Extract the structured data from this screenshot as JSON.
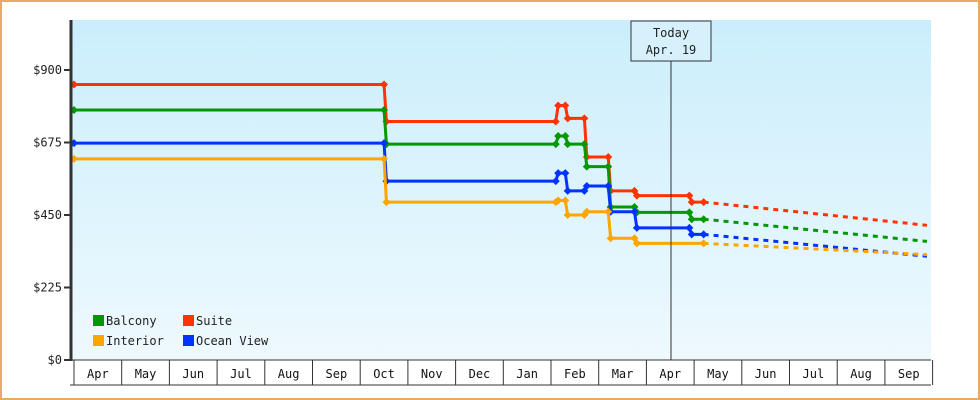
{
  "chart_data": {
    "type": "line",
    "title": "",
    "xlabel": "",
    "ylabel": "",
    "ylim": [
      0,
      1000
    ],
    "yticks": [
      {
        "value": 0,
        "label": "$0"
      },
      {
        "value": 225,
        "label": "$225"
      },
      {
        "value": 450,
        "label": "$450"
      },
      {
        "value": 675,
        "label": "$675"
      },
      {
        "value": 900,
        "label": "$900"
      }
    ],
    "x_categories": [
      "Apr",
      "May",
      "Jun",
      "Jul",
      "Aug",
      "Sep",
      "Oct",
      "Nov",
      "Dec",
      "Jan",
      "Feb",
      "Mar",
      "Apr",
      "May",
      "Jun",
      "Jul",
      "Aug",
      "Sep"
    ],
    "today_marker": {
      "line1": "Today",
      "line2": "Apr. 19",
      "x_month_index": 12.0
    },
    "legend": [
      {
        "name": "Balcony",
        "color": "#009900"
      },
      {
        "name": "Suite",
        "color": "#ff3300"
      },
      {
        "name": "Interior",
        "color": "#ffa500"
      },
      {
        "name": "Ocean View",
        "color": "#0033ff"
      }
    ],
    "series": [
      {
        "name": "Suite",
        "color": "#ff3300",
        "points": [
          [
            -0.5,
            855
          ],
          [
            6.0,
            855
          ],
          [
            6.05,
            740
          ],
          [
            9.6,
            740
          ],
          [
            9.65,
            790
          ],
          [
            9.8,
            790
          ],
          [
            9.85,
            750
          ],
          [
            10.2,
            750
          ],
          [
            10.25,
            630
          ],
          [
            10.7,
            630
          ],
          [
            10.75,
            525
          ],
          [
            11.25,
            525
          ],
          [
            11.3,
            510
          ],
          [
            11.75,
            510
          ],
          [
            12.4,
            510
          ],
          [
            12.45,
            490
          ],
          [
            12.7,
            490
          ]
        ],
        "forecast": [
          [
            12.7,
            490
          ],
          [
            18.9,
            418
          ]
        ]
      },
      {
        "name": "Balcony",
        "color": "#009900",
        "points": [
          [
            -0.5,
            776
          ],
          [
            6.0,
            776
          ],
          [
            6.05,
            670
          ],
          [
            9.6,
            670
          ],
          [
            9.65,
            695
          ],
          [
            9.8,
            695
          ],
          [
            9.85,
            670
          ],
          [
            10.2,
            670
          ],
          [
            10.25,
            600
          ],
          [
            10.7,
            600
          ],
          [
            10.75,
            475
          ],
          [
            11.25,
            475
          ],
          [
            11.3,
            458
          ],
          [
            12.4,
            458
          ],
          [
            12.45,
            437
          ],
          [
            12.7,
            437
          ]
        ],
        "forecast": [
          [
            12.7,
            437
          ],
          [
            18.9,
            368
          ]
        ]
      },
      {
        "name": "Ocean View",
        "color": "#0033ff",
        "points": [
          [
            -0.5,
            673
          ],
          [
            6.0,
            673
          ],
          [
            6.05,
            555
          ],
          [
            9.6,
            555
          ],
          [
            9.65,
            580
          ],
          [
            9.8,
            580
          ],
          [
            9.85,
            525
          ],
          [
            10.2,
            525
          ],
          [
            10.25,
            540
          ],
          [
            10.7,
            540
          ],
          [
            10.75,
            460
          ],
          [
            11.25,
            460
          ],
          [
            11.3,
            410
          ],
          [
            12.4,
            410
          ],
          [
            12.45,
            390
          ],
          [
            12.7,
            390
          ]
        ],
        "forecast": [
          [
            12.7,
            390
          ],
          [
            18.9,
            322
          ]
        ]
      },
      {
        "name": "Interior",
        "color": "#ffa500",
        "points": [
          [
            -0.5,
            624
          ],
          [
            6.0,
            624
          ],
          [
            6.05,
            490
          ],
          [
            9.6,
            490
          ],
          [
            9.65,
            495
          ],
          [
            9.8,
            495
          ],
          [
            9.85,
            450
          ],
          [
            10.2,
            450
          ],
          [
            10.25,
            460
          ],
          [
            10.7,
            460
          ],
          [
            10.75,
            378
          ],
          [
            11.25,
            378
          ],
          [
            11.3,
            362
          ],
          [
            12.7,
            362
          ]
        ],
        "forecast": [
          [
            12.7,
            362
          ],
          [
            18.9,
            327
          ]
        ]
      }
    ]
  }
}
